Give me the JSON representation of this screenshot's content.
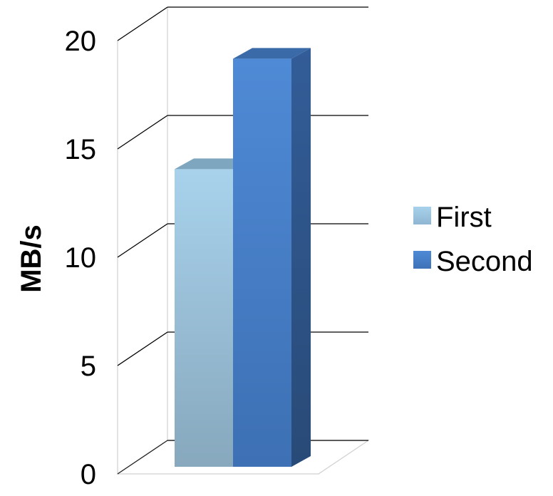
{
  "chart_data": {
    "type": "bar",
    "style": "3d-clustered-column",
    "categories": [
      ""
    ],
    "series": [
      {
        "name": "First",
        "values": [
          14.1
        ],
        "color": "#9fc5e0"
      },
      {
        "name": "Second",
        "values": [
          19.2
        ],
        "color": "#4a7fc4"
      }
    ],
    "title": "",
    "xlabel": "",
    "ylabel": "MB/s",
    "ylim": [
      0,
      20
    ],
    "yticks": [
      0,
      5,
      10,
      15,
      20
    ],
    "grid": true,
    "legend": "right"
  }
}
